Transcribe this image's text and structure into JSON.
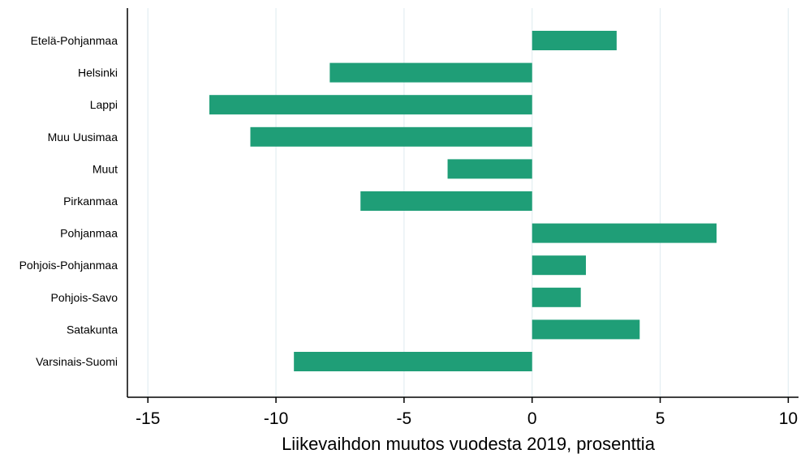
{
  "chart_data": {
    "type": "bar",
    "orientation": "horizontal",
    "categories": [
      "Etelä-Pohjanmaa",
      "Helsinki",
      "Lappi",
      "Muu Uusimaa",
      "Muut",
      "Pirkanmaa",
      "Pohjanmaa",
      "Pohjois-Pohjanmaa",
      "Pohjois-Savo",
      "Satakunta",
      "Varsinais-Suomi"
    ],
    "values": [
      3.3,
      -7.9,
      -12.6,
      -11.0,
      -3.3,
      -6.7,
      7.2,
      2.1,
      1.9,
      4.2,
      -9.3
    ],
    "xlabel": "Liikevaihdon muutos vuodesta 2019, prosenttia",
    "ylabel": "",
    "xlim": [
      -15.8,
      10.4
    ],
    "xticks": [
      -15,
      -10,
      -5,
      0,
      5,
      10
    ],
    "grid": true,
    "bar_color": "#1f9e77",
    "grid_color": "#e3eef2"
  }
}
